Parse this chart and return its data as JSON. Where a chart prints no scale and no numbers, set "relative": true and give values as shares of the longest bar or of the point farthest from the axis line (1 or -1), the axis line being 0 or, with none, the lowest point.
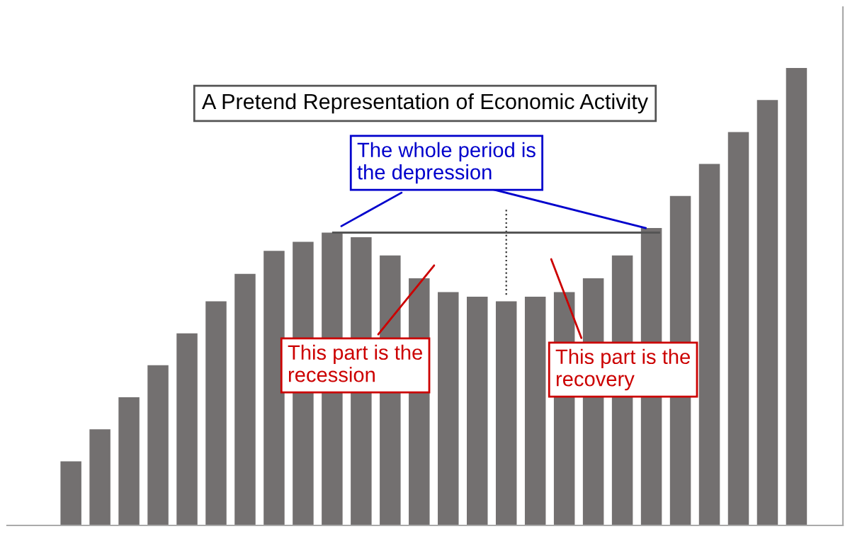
{
  "chart_data": {
    "type": "bar",
    "title": "A Pretend Representation of Economic Activity",
    "relative": true,
    "categories": [
      null,
      null,
      null,
      null,
      null,
      null,
      null,
      null,
      null,
      null,
      null,
      null,
      null,
      null,
      null,
      null,
      null,
      null,
      null,
      null,
      null,
      null,
      null,
      null,
      null,
      null
    ],
    "values": [
      0.14,
      0.21,
      0.28,
      0.35,
      0.42,
      0.49,
      0.55,
      0.6,
      0.62,
      0.64,
      0.63,
      0.59,
      0.54,
      0.51,
      0.5,
      0.49,
      0.5,
      0.51,
      0.54,
      0.59,
      0.65,
      0.72,
      0.79,
      0.86,
      0.93,
      1
    ],
    "color": "#737070",
    "annotations": [
      "The whole period is\nthe depression",
      "This part is the\nrecession",
      "This part is the\nrecovery"
    ],
    "ref_lines": [
      {
        "axis": "y",
        "value": 0.64,
        "color": "#555555",
        "line_style": "solid"
      }
    ],
    "grid": false
  }
}
